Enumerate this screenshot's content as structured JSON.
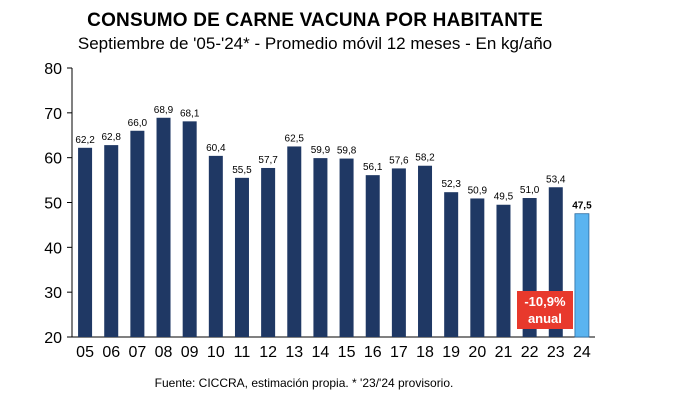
{
  "chart_data": {
    "type": "bar",
    "title": "CONSUMO DE CARNE VACUNA POR HABITANTE",
    "subtitle": "Septiembre de '05-'24* - Promedio móvil 12 meses -  En kg/año",
    "categories": [
      "05",
      "06",
      "07",
      "08",
      "09",
      "10",
      "11",
      "12",
      "13",
      "14",
      "15",
      "16",
      "17",
      "18",
      "19",
      "20",
      "21",
      "22",
      "23",
      "24"
    ],
    "values": [
      62.2,
      62.8,
      66.0,
      68.9,
      68.1,
      60.4,
      55.5,
      57.7,
      62.5,
      59.9,
      59.8,
      56.1,
      57.6,
      58.2,
      52.3,
      50.9,
      49.5,
      51.0,
      53.4,
      47.5
    ],
    "value_labels": [
      "62,2",
      "62,8",
      "66,0",
      "68,9",
      "68,1",
      "60,4",
      "55,5",
      "57,7",
      "62,5",
      "59,9",
      "59,8",
      "56,1",
      "57,6",
      "58,2",
      "52,3",
      "50,9",
      "49,5",
      "51,0",
      "53,4",
      "47,5"
    ],
    "ylim": [
      20,
      80
    ],
    "yticks": [
      20,
      30,
      40,
      50,
      60,
      70,
      80
    ],
    "grid": false,
    "colors": {
      "bar": "#1f3864",
      "highlight": "#5ab4f0",
      "badge": "#e8392c"
    },
    "highlight_index": 19,
    "annotation": {
      "line1": "-10,9%",
      "line2": "anual"
    },
    "source": "Fuente: CICCRA, estimación propia. * '23/'24 provisorio."
  }
}
